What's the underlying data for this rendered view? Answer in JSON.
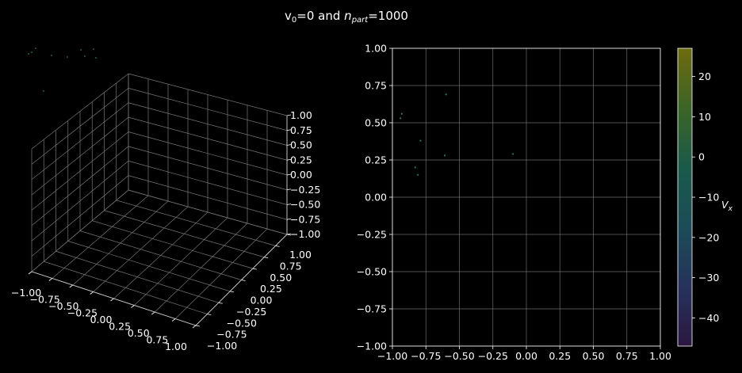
{
  "figure": {
    "title_main": "v",
    "title_sub0": "0",
    "title_mid": "=0 and ",
    "title_n": "n",
    "title_sub_part": "part",
    "title_end": "=1000"
  },
  "chart_data": [
    {
      "type": "scatter3d",
      "xlim": [
        -1.0,
        1.0
      ],
      "ylim": [
        -1.0,
        1.0
      ],
      "zlim": [
        -1.0,
        1.0
      ],
      "xticks": [
        "−1.00",
        "−0.75",
        "−0.50",
        "−0.25",
        "0.00",
        "0.25",
        "0.50",
        "0.75",
        "1.00"
      ],
      "yticks": [
        "−1.00",
        "−0.75",
        "−0.50",
        "−0.25",
        "0.00",
        "0.25",
        "0.50",
        "0.75",
        "1.00"
      ],
      "zticks": [
        "−1.00",
        "−0.75",
        "−0.50",
        "−0.25",
        "0.00",
        "0.25",
        "0.50",
        "0.75",
        "1.00"
      ],
      "grid": true,
      "points_note_color": "#2e7a52"
    },
    {
      "type": "scatter",
      "xlim": [
        -1.0,
        1.0
      ],
      "ylim": [
        -1.0,
        1.0
      ],
      "xticks": [
        "−1.00",
        "−0.75",
        "−0.50",
        "−0.25",
        "0.00",
        "0.25",
        "0.50",
        "0.75",
        "1.00"
      ],
      "yticks": [
        "−1.00",
        "−0.75",
        "−0.50",
        "−0.25",
        "0.00",
        "0.25",
        "0.50",
        "0.75",
        "1.00"
      ],
      "grid": true,
      "points": [
        {
          "x": -0.93,
          "y": 0.56
        },
        {
          "x": -0.94,
          "y": 0.53
        },
        {
          "x": -0.6,
          "y": 0.69
        },
        {
          "x": -0.79,
          "y": 0.38
        },
        {
          "x": -0.61,
          "y": 0.28
        },
        {
          "x": -0.1,
          "y": 0.29
        },
        {
          "x": -0.83,
          "y": 0.2
        },
        {
          "x": -0.81,
          "y": 0.15
        }
      ],
      "point_color": "#2e7a52"
    },
    {
      "type": "colorbar",
      "label": "V_x",
      "label_main": "V",
      "label_sub": "x",
      "range": [
        -47,
        27
      ],
      "ticks": [
        20,
        10,
        0,
        -10,
        -20,
        -30,
        -40
      ],
      "tick_labels": [
        "20",
        "10",
        "0",
        "−10",
        "−20",
        "−30",
        "−40"
      ],
      "colors": [
        "#2b1740",
        "#28305a",
        "#1b4c58",
        "#1b5a4c",
        "#2f6530",
        "#5a6a1a",
        "#6e6a10"
      ]
    }
  ]
}
